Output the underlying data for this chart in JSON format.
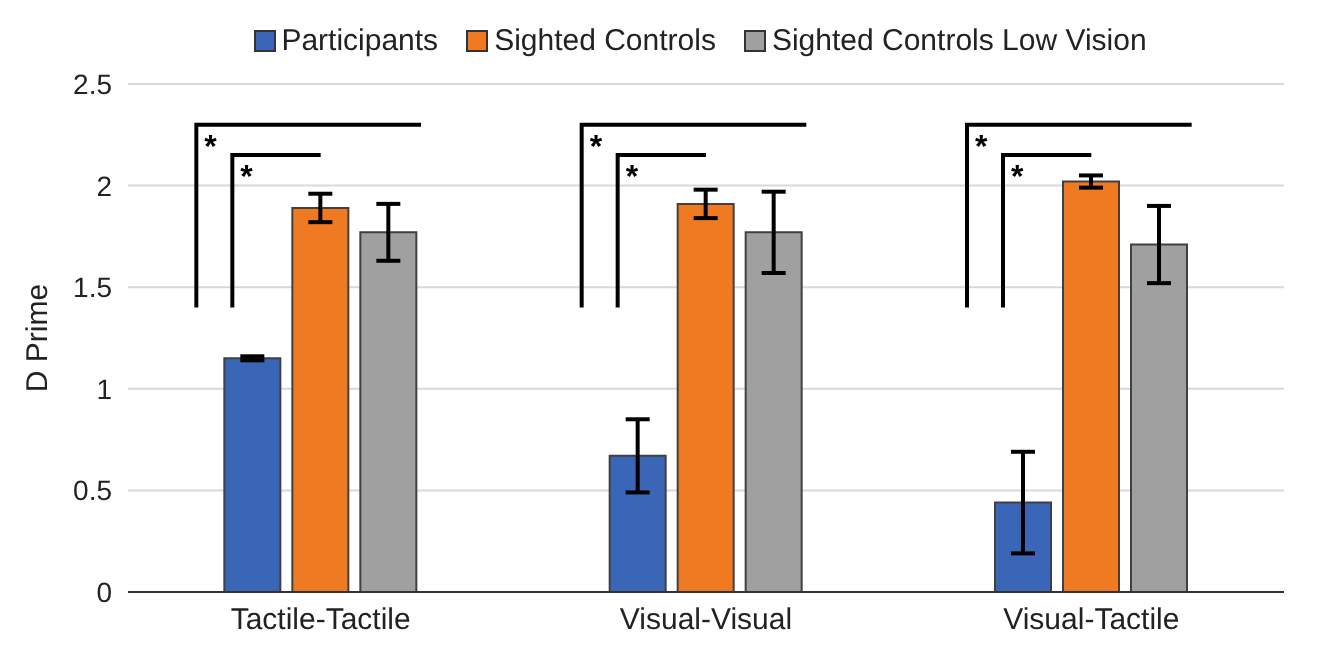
{
  "chart_data": {
    "type": "bar",
    "ylabel": "D Prime",
    "categories": [
      "Tactile-Tactile",
      "Visual-Visual",
      "Visual-Tactile"
    ],
    "series": [
      {
        "name": "Participants",
        "color": "#3a66b8",
        "values": [
          1.15,
          0.67,
          0.44
        ],
        "errors": [
          0.01,
          0.18,
          0.25
        ]
      },
      {
        "name": "Sighted Controls",
        "color": "#f07a22",
        "values": [
          1.89,
          1.91,
          2.02
        ],
        "errors": [
          0.07,
          0.07,
          0.03
        ]
      },
      {
        "name": "Sighted Controls Low Vision",
        "color": "#a0a0a0",
        "values": [
          1.77,
          1.77,
          1.71
        ],
        "errors": [
          0.14,
          0.2,
          0.19
        ]
      }
    ],
    "ylim": [
      0,
      2.5
    ],
    "yticks": [
      0,
      0.5,
      1,
      1.5,
      2,
      2.5
    ],
    "grid": "y",
    "legend": "top",
    "annotations": [
      "*",
      "*",
      "*",
      "*",
      "*",
      "*"
    ]
  }
}
